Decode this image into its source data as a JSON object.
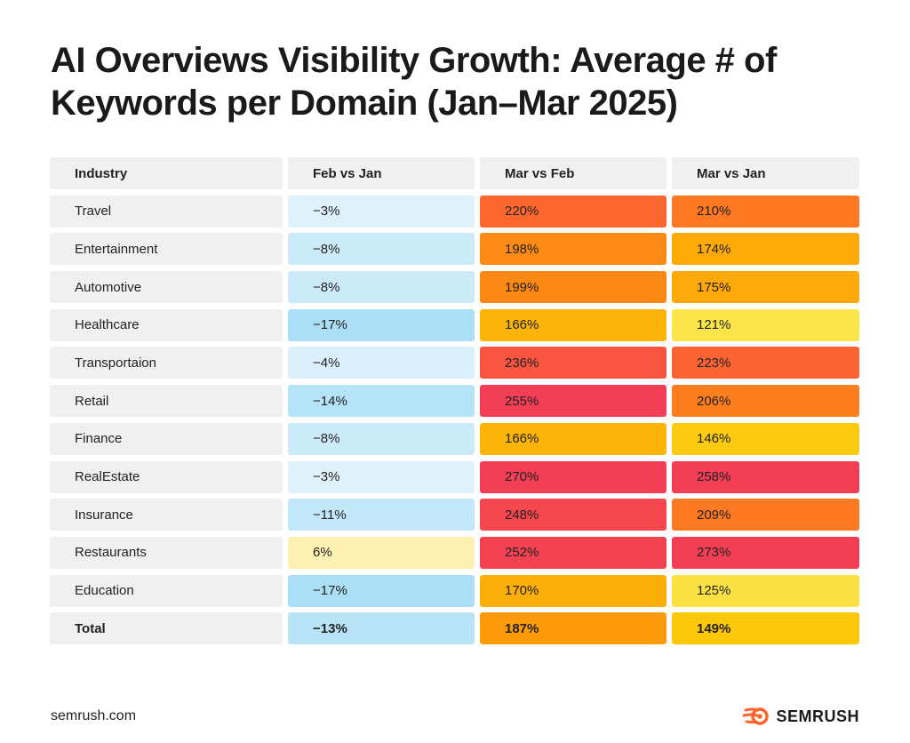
{
  "title": "AI Overviews Visibility Growth: Average # of Keywords per Domain (Jan–Mar 2025)",
  "footer": {
    "url": "semrush.com",
    "brand": "SEMRUSH"
  },
  "colors": {
    "brand_orange": "#ff642d"
  },
  "chart_data": {
    "type": "table",
    "title": "AI Overviews Visibility Growth: Average # of Keywords per Domain (Jan–Mar 2025)",
    "columns": [
      "Industry",
      "Feb vs Jan",
      "Mar vs Feb",
      "Mar vs Jan"
    ],
    "rows": [
      {
        "industry": "Travel",
        "feb_vs_jan": "−3%",
        "mar_vs_feb": "220%",
        "mar_vs_jan": "210%",
        "feb_vs_jan_value": -3,
        "mar_vs_feb_value": 220,
        "mar_vs_jan_value": 210
      },
      {
        "industry": "Entertainment",
        "feb_vs_jan": "−8%",
        "mar_vs_feb": "198%",
        "mar_vs_jan": "174%",
        "feb_vs_jan_value": -8,
        "mar_vs_feb_value": 198,
        "mar_vs_jan_value": 174
      },
      {
        "industry": "Automotive",
        "feb_vs_jan": "−8%",
        "mar_vs_feb": "199%",
        "mar_vs_jan": "175%",
        "feb_vs_jan_value": -8,
        "mar_vs_feb_value": 199,
        "mar_vs_jan_value": 175
      },
      {
        "industry": "Healthcare",
        "feb_vs_jan": "−17%",
        "mar_vs_feb": "166%",
        "mar_vs_jan": "121%",
        "feb_vs_jan_value": -17,
        "mar_vs_feb_value": 166,
        "mar_vs_jan_value": 121
      },
      {
        "industry": "Transportaion",
        "feb_vs_jan": "−4%",
        "mar_vs_feb": "236%",
        "mar_vs_jan": "223%",
        "feb_vs_jan_value": -4,
        "mar_vs_feb_value": 236,
        "mar_vs_jan_value": 223
      },
      {
        "industry": "Retail",
        "feb_vs_jan": "−14%",
        "mar_vs_feb": "255%",
        "mar_vs_jan": "206%",
        "feb_vs_jan_value": -14,
        "mar_vs_feb_value": 255,
        "mar_vs_jan_value": 206
      },
      {
        "industry": "Finance",
        "feb_vs_jan": "−8%",
        "mar_vs_feb": "166%",
        "mar_vs_jan": "146%",
        "feb_vs_jan_value": -8,
        "mar_vs_feb_value": 166,
        "mar_vs_jan_value": 146
      },
      {
        "industry": "RealEstate",
        "feb_vs_jan": "−3%",
        "mar_vs_feb": "270%",
        "mar_vs_jan": "258%",
        "feb_vs_jan_value": -3,
        "mar_vs_feb_value": 270,
        "mar_vs_jan_value": 258
      },
      {
        "industry": "Insurance",
        "feb_vs_jan": "−11%",
        "mar_vs_feb": "248%",
        "mar_vs_jan": "209%",
        "feb_vs_jan_value": -11,
        "mar_vs_feb_value": 248,
        "mar_vs_jan_value": 209
      },
      {
        "industry": "Restaurants",
        "feb_vs_jan": "6%",
        "mar_vs_feb": "252%",
        "mar_vs_jan": "273%",
        "feb_vs_jan_value": 6,
        "mar_vs_feb_value": 252,
        "mar_vs_jan_value": 273
      },
      {
        "industry": "Education",
        "feb_vs_jan": "−17%",
        "mar_vs_feb": "170%",
        "mar_vs_jan": "125%",
        "feb_vs_jan_value": -17,
        "mar_vs_feb_value": 170,
        "mar_vs_jan_value": 125
      },
      {
        "industry": "Total",
        "feb_vs_jan": "−13%",
        "mar_vs_feb": "187%",
        "mar_vs_jan": "149%",
        "feb_vs_jan_value": -13,
        "mar_vs_feb_value": 187,
        "mar_vs_jan_value": 149,
        "is_total": true
      }
    ],
    "color_scale": {
      "negative": [
        "#eaf5fc",
        "#aadff6"
      ],
      "positive_small": "#fdf0b3",
      "heat": [
        "#fbe64d",
        "#fcc707",
        "#fd970a",
        "#fd6830",
        "#f23f56"
      ]
    }
  }
}
